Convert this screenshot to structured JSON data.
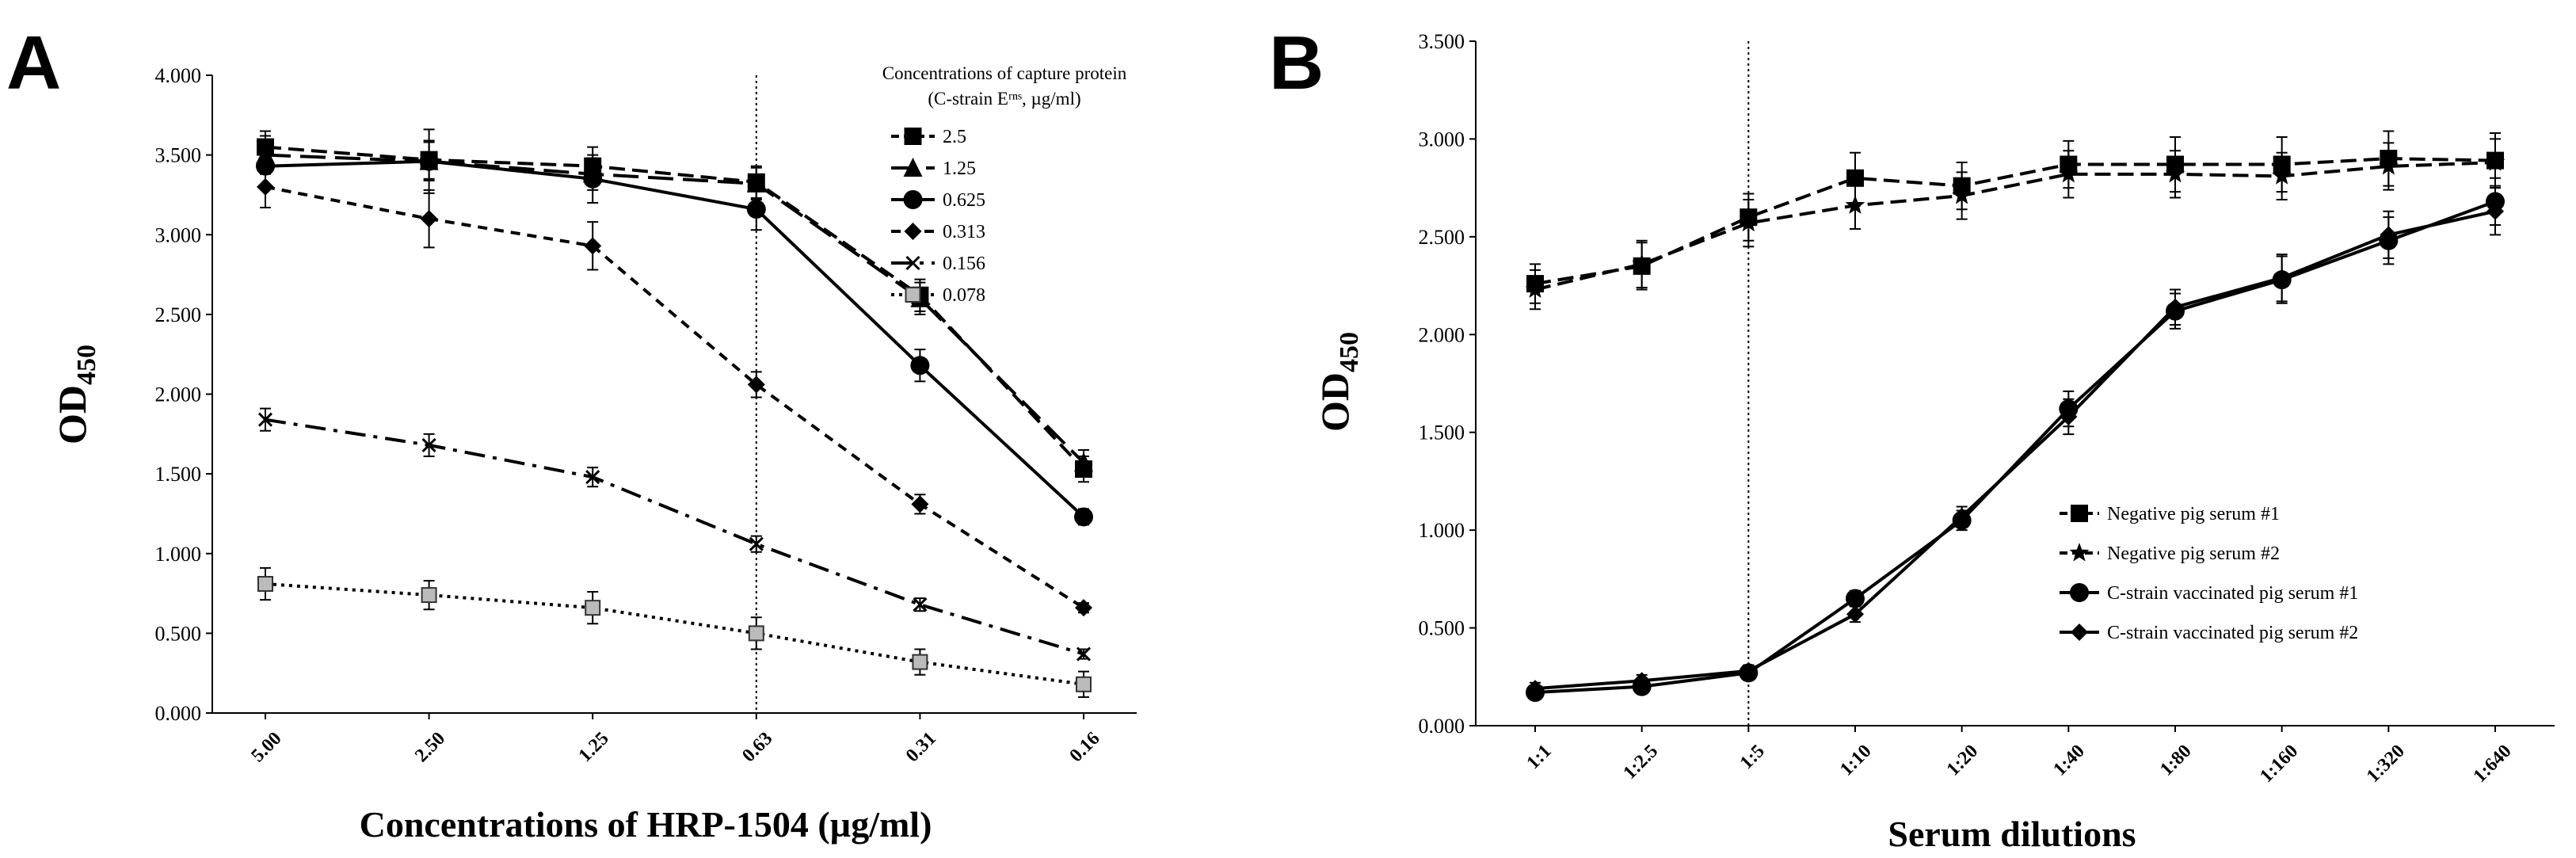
{
  "figure": {
    "panel_a_letter": "A",
    "panel_b_letter": "B"
  },
  "chart_data": [
    {
      "type": "line",
      "panel": "A",
      "xlabel": "Concentrations of HRP-1504 (µg/ml)",
      "ylabel_main": "OD",
      "ylabel_sub": "450",
      "categories": [
        "5.00",
        "2.50",
        "1.25",
        "0.63",
        "0.31",
        "0.16"
      ],
      "yticks": [
        "0.000",
        "0.500",
        "1.000",
        "1.500",
        "2.000",
        "2.500",
        "3.000",
        "3.500",
        "4.000"
      ],
      "ylim": [
        0,
        4
      ],
      "grid": false,
      "reference_line": {
        "category": "0.63",
        "style": "dotted"
      },
      "legend_position": "top-right",
      "legend_title_line1": "Concentrations of capture protein",
      "legend_title_line2": "(C-strain Eʳⁿˢ, µg/ml)",
      "series": [
        {
          "name": "2.5",
          "marker": "square",
          "line": "dashed",
          "values": [
            3.55,
            3.47,
            3.43,
            3.33,
            2.62,
            1.53
          ],
          "errors": [
            0.1,
            0.12,
            0.12,
            0.1,
            0.1,
            0.08
          ]
        },
        {
          "name": "1.25",
          "marker": "triangle",
          "line": "longdash",
          "values": [
            3.5,
            3.46,
            3.38,
            3.32,
            2.6,
            1.57
          ],
          "errors": [
            0.12,
            0.12,
            0.1,
            0.1,
            0.1,
            0.08
          ]
        },
        {
          "name": "0.625",
          "marker": "circle",
          "line": "solid",
          "values": [
            3.43,
            3.46,
            3.35,
            3.16,
            2.18,
            1.23
          ],
          "errors": [
            0.12,
            0.2,
            0.15,
            0.13,
            0.1,
            0.05
          ]
        },
        {
          "name": "0.313",
          "marker": "diamond",
          "line": "shortdash",
          "values": [
            3.3,
            3.1,
            2.93,
            2.06,
            1.31,
            0.66
          ],
          "errors": [
            0.13,
            0.18,
            0.15,
            0.08,
            0.06,
            0.03
          ]
        },
        {
          "name": "0.156",
          "marker": "x",
          "line": "dashdot",
          "values": [
            1.84,
            1.68,
            1.48,
            1.06,
            0.68,
            0.37
          ],
          "errors": [
            0.07,
            0.07,
            0.06,
            0.05,
            0.04,
            0.03
          ]
        },
        {
          "name": "0.078",
          "marker": "hatched-square",
          "line": "dotted",
          "values": [
            0.81,
            0.74,
            0.66,
            0.5,
            0.32,
            0.18
          ],
          "errors": [
            0.1,
            0.09,
            0.1,
            0.1,
            0.08,
            0.08
          ]
        }
      ]
    },
    {
      "type": "line",
      "panel": "B",
      "xlabel": "Serum dilutions",
      "ylabel_main": "OD",
      "ylabel_sub": "450",
      "categories": [
        "1:1",
        "1:2.5",
        "1:5",
        "1:10",
        "1:20",
        "1:40",
        "1:80",
        "1:160",
        "1:320",
        "1:640"
      ],
      "yticks": [
        "0.000",
        "0.500",
        "1.000",
        "1.500",
        "2.000",
        "2.500",
        "3.000",
        "3.500"
      ],
      "ylim": [
        0,
        3.5
      ],
      "grid": false,
      "reference_line": {
        "category": "1:5",
        "style": "dotted"
      },
      "legend_position": "bottom-right",
      "series": [
        {
          "name": "Negative pig serum #1",
          "marker": "square",
          "line": "dashed",
          "values": [
            2.26,
            2.35,
            2.6,
            2.8,
            2.76,
            2.87,
            2.87,
            2.87,
            2.9,
            2.89
          ],
          "errors": [
            0.1,
            0.12,
            0.12,
            0.13,
            0.12,
            0.12,
            0.14,
            0.14,
            0.14,
            0.14
          ]
        },
        {
          "name": "Negative pig serum #2",
          "marker": "star",
          "line": "dashed",
          "values": [
            2.23,
            2.36,
            2.57,
            2.66,
            2.71,
            2.82,
            2.82,
            2.81,
            2.86,
            2.88
          ],
          "errors": [
            0.1,
            0.12,
            0.12,
            0.12,
            0.12,
            0.12,
            0.12,
            0.12,
            0.12,
            0.12
          ]
        },
        {
          "name": "C-strain vaccinated pig serum #1",
          "marker": "circle",
          "line": "solid",
          "values": [
            0.17,
            0.2,
            0.27,
            0.65,
            1.05,
            1.62,
            2.12,
            2.28,
            2.48,
            2.68
          ],
          "errors": [
            0.03,
            0.03,
            0.03,
            0.04,
            0.05,
            0.09,
            0.09,
            0.12,
            0.12,
            0.12
          ]
        },
        {
          "name": "C-strain vaccinated pig serum #2",
          "marker": "diamond",
          "line": "solid",
          "values": [
            0.19,
            0.23,
            0.28,
            0.57,
            1.07,
            1.58,
            2.14,
            2.29,
            2.51,
            2.63
          ],
          "errors": [
            0.03,
            0.03,
            0.03,
            0.04,
            0.05,
            0.09,
            0.09,
            0.12,
            0.12,
            0.12
          ]
        }
      ]
    }
  ]
}
